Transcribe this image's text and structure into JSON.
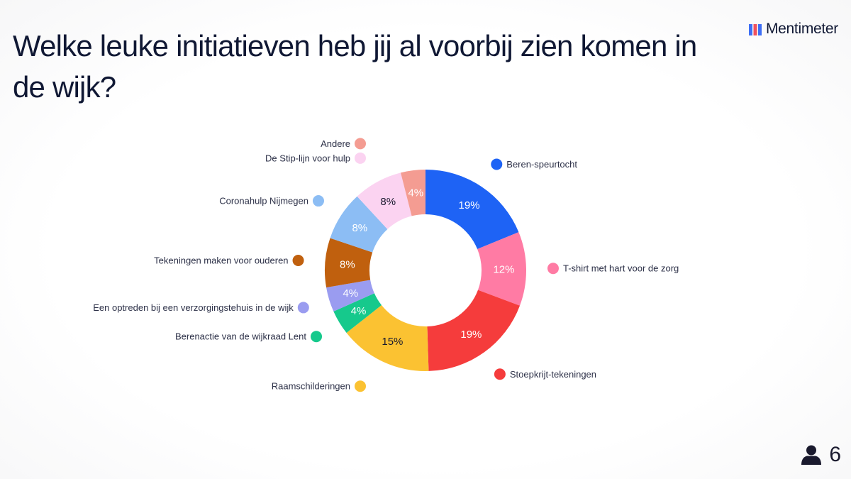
{
  "question": "Welke leuke initiatieven heb jij al voorbij zien komen in de wijk?",
  "brand": {
    "name": "Mentimeter",
    "logo_icon": "mentimeter-logo-icon"
  },
  "participants": {
    "count": "6",
    "icon": "person-icon"
  },
  "chart_data": {
    "type": "pie",
    "donut": true,
    "legend": "labels around chart",
    "slices": [
      {
        "label": "Beren-speurtocht",
        "value": 19,
        "display": "19%",
        "color": "#1e63f5",
        "text_color": "#ffffff"
      },
      {
        "label": "T-shirt met hart voor de zorg",
        "value": 12,
        "display": "12%",
        "color": "#ff7ba4",
        "text_color": "#ffffff"
      },
      {
        "label": "Stoepkrijt-tekeningen",
        "value": 19,
        "display": "19%",
        "color": "#f53c3c",
        "text_color": "#ffffff"
      },
      {
        "label": "Raamschilderingen",
        "value": 15,
        "display": "15%",
        "color": "#fbc232",
        "text_color": "#1a1a2e"
      },
      {
        "label": "Berenactie van de wijkraad Lent",
        "value": 4,
        "display": "4%",
        "color": "#16c98c",
        "text_color": "#ffffff"
      },
      {
        "label": "Een optreden bij een verzorgingstehuis in de wijk",
        "value": 4,
        "display": "4%",
        "color": "#9a9cf0",
        "text_color": "#ffffff"
      },
      {
        "label": "Tekeningen maken voor ouderen",
        "value": 8,
        "display": "8%",
        "color": "#c0600e",
        "text_color": "#ffffff"
      },
      {
        "label": "Coronahulp Nijmegen",
        "value": 8,
        "display": "8%",
        "color": "#8cbdf4",
        "text_color": "#ffffff"
      },
      {
        "label": "De Stip-lijn voor hulp",
        "value": 8,
        "display": "8%",
        "color": "#fbd3f1",
        "text_color": "#1a1a2e"
      },
      {
        "label": "Andere",
        "value": 4,
        "display": "4%",
        "color": "#f49c92",
        "text_color": "#ffffff"
      }
    ]
  }
}
